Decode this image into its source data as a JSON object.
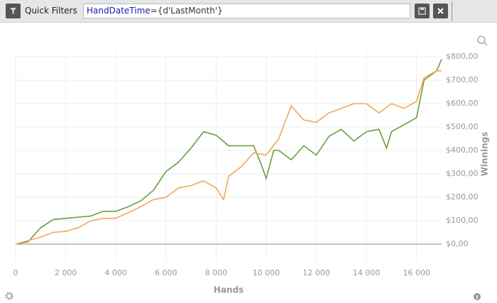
{
  "toolbar": {
    "label": "Quick Filters",
    "filter_field": "HandDateTime",
    "filter_value": "={d'LastMonth'}"
  },
  "chart_data": {
    "type": "line",
    "x_label": "Hands",
    "y_label": "Winnings",
    "xlim": [
      0,
      17000
    ],
    "xticks": [
      {
        "value": 0,
        "label": "0"
      },
      {
        "value": 2000,
        "label": "2 000"
      },
      {
        "value": 4000,
        "label": "4 000"
      },
      {
        "value": 6000,
        "label": "6 000"
      },
      {
        "value": 8000,
        "label": "8 000"
      },
      {
        "value": 10000,
        "label": "10 000"
      },
      {
        "value": 12000,
        "label": "12 000"
      },
      {
        "value": 14000,
        "label": "14 000"
      },
      {
        "value": 16000,
        "label": "16 000"
      }
    ],
    "ylim": [
      -70,
      880
    ],
    "yticks": [
      {
        "value": 0,
        "label": "$0,00"
      },
      {
        "value": 100,
        "label": "$100,00"
      },
      {
        "value": 200,
        "label": "$200,00"
      },
      {
        "value": 300,
        "label": "$300,00"
      },
      {
        "value": 400,
        "label": "$400,00"
      },
      {
        "value": 500,
        "label": "$500,00"
      },
      {
        "value": 600,
        "label": "$600,00"
      },
      {
        "value": 700,
        "label": "$700,00"
      },
      {
        "value": 800,
        "label": "$800,00"
      }
    ],
    "grid": true,
    "series": [
      {
        "color": "#6a9e3f",
        "x": [
          0,
          500,
          1000,
          1500,
          2000,
          2500,
          3000,
          3500,
          4000,
          4500,
          5000,
          5500,
          6000,
          6500,
          7000,
          7500,
          8000,
          8500,
          9000,
          9500,
          9800,
          10000,
          10300,
          10500,
          11000,
          11500,
          12000,
          12500,
          13000,
          13500,
          14000,
          14500,
          14800,
          15000,
          15500,
          16000,
          16300,
          16800,
          17000
        ],
        "values": [
          0,
          10,
          70,
          105,
          110,
          115,
          120,
          140,
          140,
          160,
          185,
          230,
          310,
          350,
          410,
          480,
          465,
          420,
          420,
          420,
          340,
          280,
          400,
          400,
          360,
          420,
          380,
          460,
          490,
          440,
          480,
          490,
          410,
          480,
          510,
          540,
          700,
          740,
          790
        ]
      },
      {
        "color": "#f5a55a",
        "x": [
          0,
          1000,
          1500,
          2000,
          2500,
          3000,
          3500,
          4000,
          4500,
          5000,
          5500,
          6000,
          6500,
          7000,
          7500,
          8000,
          8300,
          8500,
          9000,
          9500,
          10000,
          10500,
          11000,
          11500,
          12000,
          12500,
          13000,
          13500,
          14000,
          14500,
          15000,
          15500,
          16000,
          16300,
          16800,
          17000
        ],
        "values": [
          0,
          30,
          50,
          55,
          70,
          100,
          110,
          110,
          135,
          160,
          190,
          200,
          240,
          250,
          270,
          240,
          190,
          290,
          330,
          390,
          380,
          450,
          590,
          530,
          520,
          560,
          580,
          600,
          600,
          560,
          600,
          580,
          610,
          710,
          740,
          740
        ]
      }
    ]
  }
}
